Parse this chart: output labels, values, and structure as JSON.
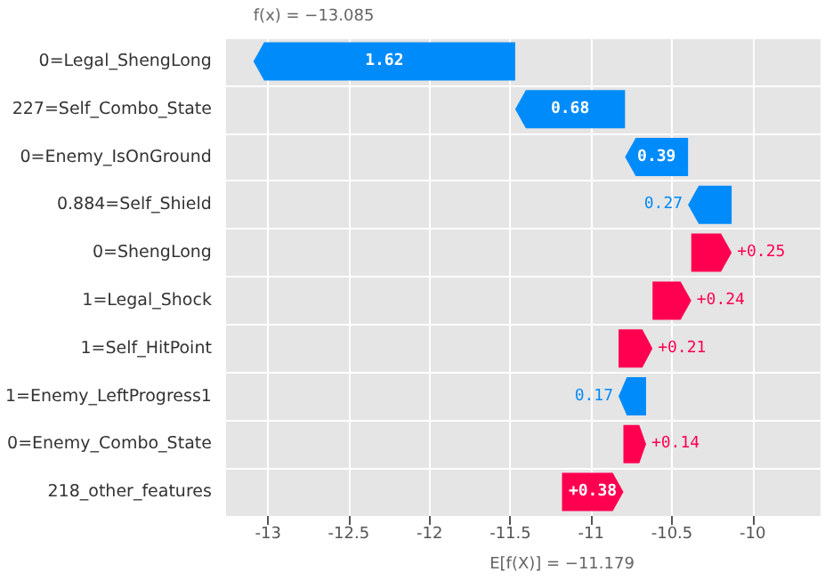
{
  "chart_data": {
    "type": "bar",
    "orientation": "horizontal",
    "categories": [
      "0=Legal_ShengLong",
      "227=Self_Combo_State",
      "0=Enemy_IsOnGround",
      "0.884=Self_Shield",
      "0=ShengLong",
      "1=Legal_Shock",
      "1=Self_HitPoint",
      "1=Enemy_LeftProgress1",
      "0=Enemy_Combo_State",
      "218_other_features"
    ],
    "values": [
      -1.62,
      -0.68,
      -0.39,
      -0.27,
      0.25,
      0.24,
      0.21,
      -0.17,
      0.14,
      0.38
    ],
    "base": [
      -11.47,
      -10.79,
      -10.4,
      -10.13,
      -10.38,
      -10.62,
      -10.83,
      -10.66,
      -10.8,
      -11.18
    ],
    "colors": [
      "#008bfb",
      "#008bfb",
      "#008bfb",
      "#008bfb",
      "#ff0051",
      "#ff0051",
      "#ff0051",
      "#008bfb",
      "#ff0051",
      "#ff0051"
    ],
    "value_labels": [
      "1.62",
      "0.68",
      "0.39",
      "0.27",
      "+0.25",
      "+0.24",
      "+0.21",
      "0.17",
      "+0.14",
      "+0.38"
    ],
    "xlim": [
      -13.26,
      -9.58
    ],
    "xticks": [
      -13,
      -12.5,
      -12,
      -11.5,
      -11,
      -10.5,
      -10
    ],
    "grid": true,
    "annotations": [
      "f(x) = −13.085",
      "E[f(X)] = −11.179"
    ]
  }
}
